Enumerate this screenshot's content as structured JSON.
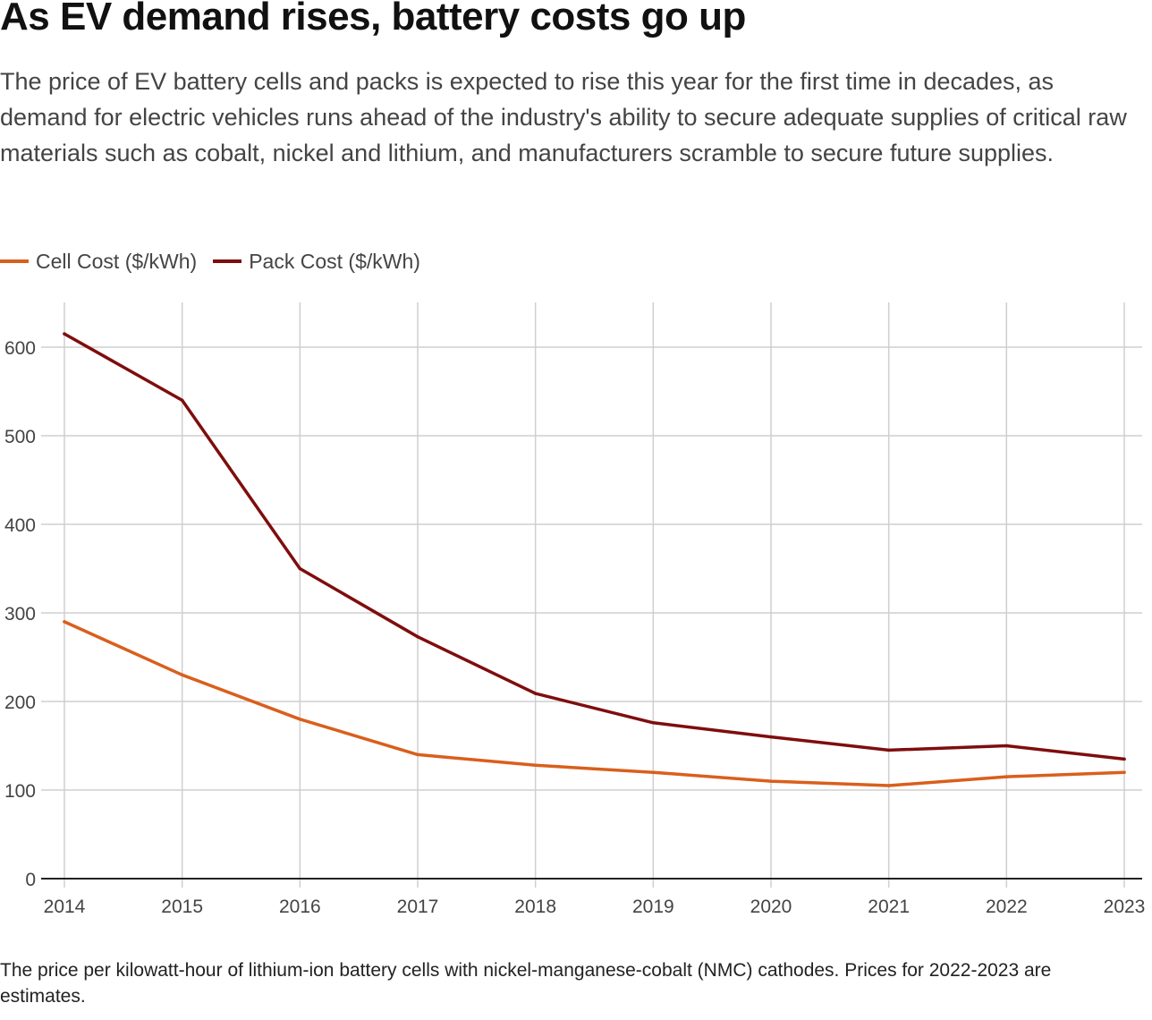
{
  "chart_data": {
    "type": "line",
    "title": "As EV demand rises, battery costs go up",
    "subtitle": "The price of EV battery cells and packs is expected to rise this year for the first time in decades, as demand for electric vehicles runs ahead of the industry's ability to secure adequate supplies of critical raw materials such as cobalt, nickel and lithium, and manufacturers scramble to secure future supplies.",
    "xlabel": "",
    "ylabel": "",
    "x": [
      "2014",
      "2015",
      "2016",
      "2017",
      "2018",
      "2019",
      "2020",
      "2021",
      "2022",
      "2023"
    ],
    "ylim": [
      0,
      650
    ],
    "yticks": [
      0,
      100,
      200,
      300,
      400,
      500,
      600
    ],
    "grid": true,
    "legend_position": "top-left",
    "series": [
      {
        "name": "Cell Cost ($/kWh)",
        "color": "#d95f1c",
        "values": [
          290,
          230,
          180,
          140,
          128,
          120,
          110,
          105,
          115,
          120
        ]
      },
      {
        "name": "Pack Cost ($/kWh)",
        "color": "#7f0d0d",
        "values": [
          615,
          540,
          350,
          273,
          209,
          176,
          160,
          145,
          150,
          135
        ]
      }
    ],
    "footnote": "The price per kilowatt-hour of lithium-ion battery cells with nickel-manganese-cobalt (NMC) cathodes. Prices for 2022-2023 are estimates."
  }
}
